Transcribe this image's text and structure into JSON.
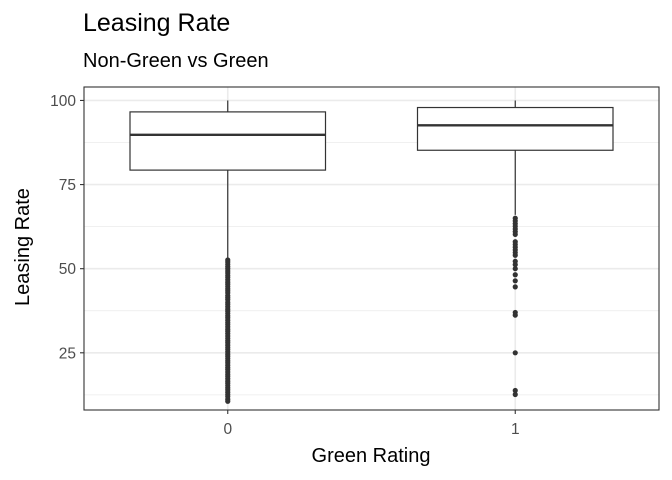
{
  "chart_data": {
    "type": "box",
    "title": "Leasing Rate",
    "subtitle": "Non-Green vs Green",
    "xlabel": "Green Rating",
    "ylabel": "Leasing Rate",
    "ylim": [
      8,
      104
    ],
    "y_ticks": [
      25,
      50,
      75,
      100
    ],
    "y_minor": [
      12.5,
      37.5,
      62.5,
      87.5
    ],
    "grid": true,
    "categories": [
      "0",
      "1"
    ],
    "boxes": [
      {
        "category": "0",
        "q1": 79.3,
        "median": 89.8,
        "q3": 96.6,
        "whisker_low": 53.0,
        "whisker_high": 100,
        "outliers": [
          52.6,
          52.0,
          51.3,
          50.6,
          50.0,
          49.3,
          48.7,
          48.0,
          47.4,
          46.7,
          46.0,
          45.4,
          44.7,
          44.0,
          43.4,
          42.8,
          42.0,
          41.4,
          40.8,
          40.0,
          39.4,
          38.7,
          38.0,
          37.4,
          36.7,
          36.0,
          35.4,
          34.7,
          34.0,
          33.4,
          32.7,
          32.0,
          31.4,
          30.7,
          30.0,
          29.3,
          28.6,
          28.0,
          27.3,
          26.6,
          26.0,
          25.3,
          24.6,
          24.0,
          23.3,
          22.6,
          22.0,
          21.3,
          20.6,
          20.0,
          19.3,
          18.6,
          18.0,
          17.3,
          16.6,
          16.0,
          15.3,
          14.6,
          14.0,
          13.3,
          12.6,
          12.0,
          11.2,
          10.6
        ],
        "whisker_high_label": ""
      },
      {
        "category": "1",
        "q1": 85.2,
        "median": 92.6,
        "q3": 97.9,
        "whisker_low": 66.0,
        "whisker_high": 100,
        "outliers": [
          65.0,
          64.2,
          63.4,
          62.6,
          61.8,
          61.0,
          60.2,
          58.0,
          57.2,
          56.4,
          55.6,
          54.8,
          54.0,
          52.2,
          51.2,
          50.0,
          48.2,
          46.4,
          44.6,
          37.0,
          36.2,
          25.0,
          13.8,
          12.6
        ]
      }
    ]
  }
}
